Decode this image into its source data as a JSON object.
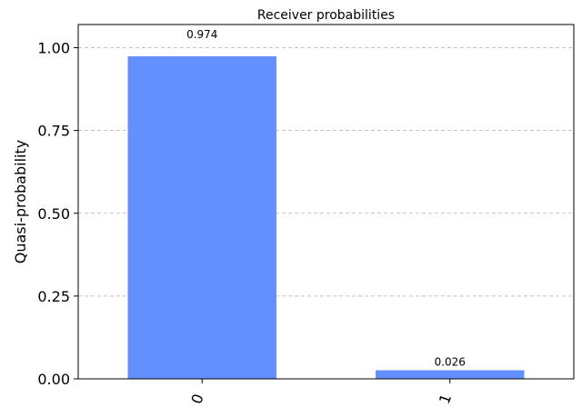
{
  "chart_data": {
    "type": "bar",
    "title": "Receiver probabilities",
    "xlabel": "",
    "ylabel": "Quasi-probability",
    "categories": [
      "0",
      "1"
    ],
    "values": [
      0.974,
      0.026
    ],
    "value_labels": [
      "0.974",
      "0.026"
    ],
    "yticks": [
      0.0,
      0.25,
      0.5,
      0.75,
      1.0
    ],
    "ytick_labels": [
      "0.00",
      "0.25",
      "0.50",
      "0.75",
      "1.00"
    ],
    "ylim": [
      0,
      1.07
    ],
    "bar_color": "#648fff",
    "grid": "y-dashed",
    "legend": "none"
  }
}
